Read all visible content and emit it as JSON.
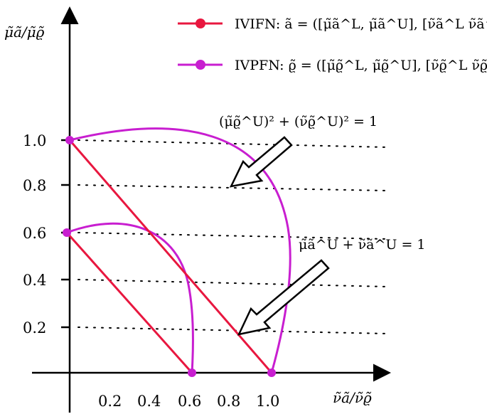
{
  "colors": {
    "ivifn": "#e8173f",
    "ivpfn": "#c81ed0",
    "axis": "#000000"
  },
  "axes": {
    "y_label": "μ̃ã/μ̃ϱ̃",
    "x_label": "ν̃ã/ν̃ϱ̃",
    "y_ticks": [
      "1.0",
      "0.8",
      "0.6",
      "0.4",
      "0.2"
    ],
    "x_ticks": [
      "0.2",
      "0.4",
      "0.6",
      "0.8",
      "1.0"
    ]
  },
  "legend": [
    {
      "text": "IVIFN: ã = ([μ̃ã^L, μ̃ã^U], [ν̃ã^L ν̃ã^U])"
    },
    {
      "text": "IVPFN: ϱ̃ = ([μ̃ϱ̃^L, μ̃ϱ̃^U], [ν̃ϱ̃^L ν̃ϱ̃^U])"
    }
  ],
  "annotations": {
    "pythagorean": "(μ̃ϱ̃^U)² + (ν̃ϱ̃^U)² = 1",
    "intuitionistic": "μ̃ã^U + ν̃ã^U = 1"
  }
}
